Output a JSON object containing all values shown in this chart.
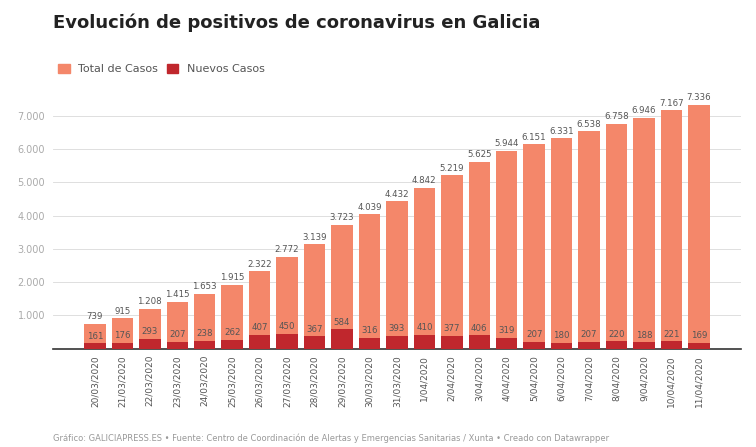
{
  "title": "Evolución de positivos de coronavirus en Galicia",
  "footer": "Gráfico: GALICIAPRESS.ES • Fuente: Centro de Coordinación de Alertas y Emergencias Sanitarias / Xunta • Creado con Datawrapper",
  "legend_total": "Total de Casos",
  "legend_new": "Nuevos Casos",
  "dates": [
    "20/03/2020",
    "21/03/2020",
    "22/03/2020",
    "23/03/2020",
    "24/03/2020",
    "25/03/2020",
    "26/03/2020",
    "27/03/2020",
    "28/03/2020",
    "29/03/2020",
    "30/03/2020",
    "31/03/2020",
    "1/04/2020",
    "2/04/2020",
    "3/04/2020",
    "4/04/2020",
    "5/04/2020",
    "6/04/2020",
    "7/04/2020",
    "8/04/2020",
    "9/04/2020",
    "10/04/2020",
    "11/04/2020"
  ],
  "total_cases": [
    739,
    915,
    1208,
    1415,
    1653,
    1915,
    2322,
    2772,
    3139,
    3723,
    4039,
    4432,
    4842,
    5219,
    5625,
    5944,
    6151,
    6331,
    6538,
    6758,
    6946,
    7167,
    7336
  ],
  "new_cases": [
    161,
    176,
    293,
    207,
    238,
    262,
    407,
    450,
    367,
    584,
    316,
    393,
    410,
    377,
    406,
    319,
    207,
    180,
    207,
    220,
    188,
    221,
    169
  ],
  "color_total": "#F4876A",
  "color_new": "#C0272D",
  "background": "#ffffff",
  "ylim": [
    0,
    7800
  ],
  "yticks": [
    1000,
    2000,
    3000,
    4000,
    5000,
    6000,
    7000
  ],
  "title_fontsize": 13,
  "label_fontsize": 6.2,
  "footer_fontsize": 6.0,
  "legend_fontsize": 8.0
}
